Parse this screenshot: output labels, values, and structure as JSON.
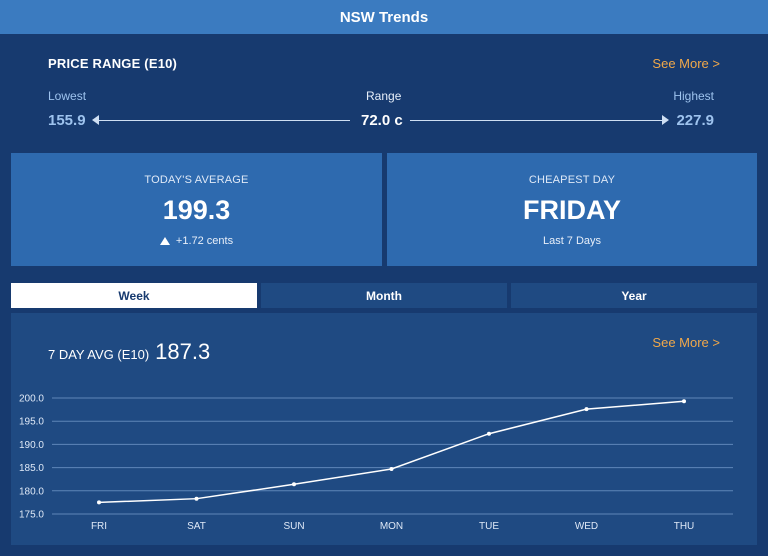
{
  "header": {
    "title": "NSW Trends"
  },
  "price_range": {
    "title": "PRICE RANGE (E10)",
    "see_more": "See More >",
    "lowest_label": "Lowest",
    "lowest_value": "155.9",
    "range_label": "Range",
    "range_value": "72.0 c",
    "highest_label": "Highest",
    "highest_value": "227.9"
  },
  "todays_average": {
    "title": "TODAY'S AVERAGE",
    "value": "199.3",
    "change": "+1.72 cents"
  },
  "cheapest_day": {
    "title": "CHEAPEST DAY",
    "value": "FRIDAY",
    "subtitle": "Last 7 Days"
  },
  "tabs": [
    {
      "label": "Week",
      "active": true
    },
    {
      "label": "Month",
      "active": false
    },
    {
      "label": "Year",
      "active": false
    }
  ],
  "chart_panel": {
    "title_label": "7 DAY AVG (E10)",
    "title_value": "187.3",
    "see_more": "See More >"
  },
  "colors": {
    "background": "#173a6f",
    "header": "#3b7bc0",
    "card": "#2e6aaf",
    "panel": "#1f4a82",
    "accent": "#f0a84a",
    "highlight": "#9ec3ee"
  },
  "chart_data": {
    "type": "line",
    "title": "",
    "xlabel": "",
    "ylabel": "",
    "categories": [
      "FRI",
      "SAT",
      "SUN",
      "MON",
      "TUE",
      "WED",
      "THU"
    ],
    "series": [
      {
        "values": [
          177.5,
          178.3,
          181.4,
          184.7,
          192.3,
          197.6,
          199.3
        ]
      }
    ],
    "yticks": [
      "175.0",
      "180.0",
      "185.0",
      "190.0",
      "195.0",
      "200.0"
    ],
    "ylim": [
      175,
      200
    ],
    "grid": true,
    "legend": "none"
  }
}
